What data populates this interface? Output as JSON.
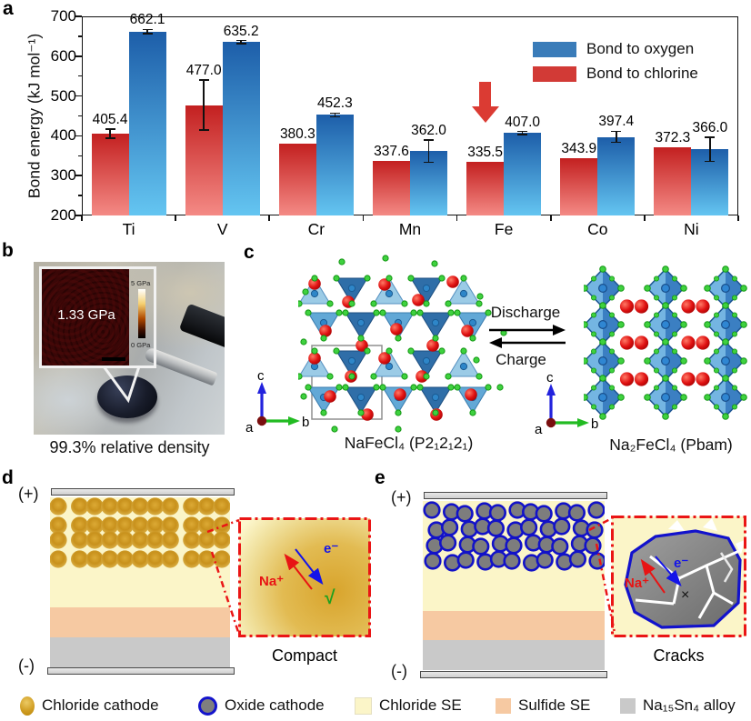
{
  "panels": {
    "a": "a",
    "b": "b",
    "c": "c",
    "d": "d",
    "e": "e"
  },
  "chart_data": {
    "type": "bar",
    "title": "",
    "ylabel": "Bond energy (kJ mol⁻¹)",
    "xlabel": "",
    "ylim": [
      200,
      700
    ],
    "yticks": [
      200,
      300,
      400,
      500,
      600,
      700
    ],
    "categories": [
      "Ti",
      "V",
      "Cr",
      "Mn",
      "Fe",
      "Co",
      "Ni"
    ],
    "series": [
      {
        "name": "Bond to chlorine",
        "legend_color": "#d23a36",
        "color_top": "#c32020",
        "color_bottom": "#f48a85",
        "values": [
          405.4,
          477.0,
          380.3,
          337.6,
          335.5,
          343.9,
          372.3
        ],
        "errors": [
          12,
          63,
          0,
          0,
          0,
          0,
          0
        ]
      },
      {
        "name": "Bond to oxygen",
        "legend_color": "#3a7cb9",
        "color_top": "#1d5ea9",
        "color_bottom": "#64c5f1",
        "values": [
          662.1,
          635.2,
          452.3,
          362.0,
          407.0,
          397.4,
          366.0
        ],
        "errors": [
          5,
          4,
          5,
          28,
          4,
          14,
          30
        ]
      }
    ],
    "legend_position": "top-right",
    "annotation": {
      "shape": "down-arrow",
      "category": "Fe",
      "series": "Bond to chlorine",
      "color": "#db3b33"
    }
  },
  "panel_b": {
    "inset_value": "1.33 GPa",
    "colorbar_top": "5 GPa",
    "colorbar_bottom": "0 GPa",
    "caption": "99.3% relative density"
  },
  "panel_c": {
    "discharge": "Discharge",
    "charge": "Charge",
    "left_title": "NaFeCl₄ (P2₁2₁2₁)",
    "right_title": "Na₂FeCl₄ (Pbam)",
    "axis_a": "a",
    "axis_b": "b",
    "axis_c": "c"
  },
  "panel_d": {
    "electrode_plus": "(+)",
    "electrode_minus": "(-)",
    "na_label": "Na⁺",
    "e_label": "e⁻",
    "check": "√",
    "caption": "Compact"
  },
  "panel_e": {
    "electrode_plus": "(+)",
    "electrode_minus": "(-)",
    "na_label": "Na⁺",
    "e_label": "e⁻",
    "cross": "×",
    "caption": "Cracks"
  },
  "legend_bar": {
    "items": [
      {
        "label": "Chloride cathode",
        "swatch": "chloride-cathode-dot"
      },
      {
        "label": "Oxide cathode",
        "swatch": "oxide-cathode-dot"
      },
      {
        "label": "Chloride SE",
        "swatch": "chloride-se-square"
      },
      {
        "label": "Sulfide SE",
        "swatch": "sulfide-se-square"
      },
      {
        "label": "Na₁₅Sn₄ alloy",
        "swatch": "alloy-square"
      }
    ]
  }
}
